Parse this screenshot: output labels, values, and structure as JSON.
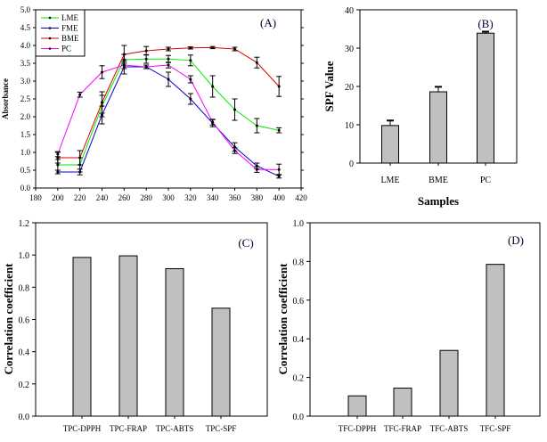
{
  "chart_data": [
    {
      "id": "A",
      "type": "line",
      "panel_label": "(A)",
      "title": "",
      "xlabel": "",
      "ylabel": "Absorbance",
      "xlim": [
        180,
        420
      ],
      "ylim": [
        0,
        5.0
      ],
      "xticks": [
        "180",
        "200",
        "220",
        "240",
        "260",
        "280",
        "300",
        "320",
        "340",
        "360",
        "380",
        "400",
        "420"
      ],
      "yticks": [
        "0.0",
        "0.5",
        "1.0",
        "1.5",
        "2.0",
        "2.5",
        "3.0",
        "3.5",
        "4.0",
        "4.5",
        "5.0"
      ],
      "legend_position": "top-left",
      "x": [
        200,
        220,
        240,
        260,
        280,
        300,
        320,
        340,
        360,
        380,
        400
      ],
      "series": [
        {
          "name": "LME",
          "color": "#00ee00",
          "values": [
            0.65,
            0.65,
            2.3,
            3.6,
            3.62,
            3.62,
            3.58,
            2.85,
            2.2,
            1.75,
            1.62
          ],
          "errors": [
            0.15,
            0.2,
            0.3,
            0.15,
            0.12,
            0.1,
            0.15,
            0.3,
            0.3,
            0.2,
            0.07
          ]
        },
        {
          "name": "FME",
          "color": "#0000cc",
          "values": [
            0.45,
            0.45,
            2.05,
            3.4,
            3.4,
            3.05,
            2.5,
            1.82,
            1.15,
            0.62,
            0.33
          ],
          "errors": [
            0.05,
            0.08,
            0.25,
            0.2,
            0.05,
            0.2,
            0.15,
            0.1,
            0.12,
            0.08,
            0.05
          ]
        },
        {
          "name": "BME",
          "color": "#dd0000",
          "values": [
            0.85,
            0.85,
            2.4,
            3.75,
            3.85,
            3.9,
            3.93,
            3.94,
            3.9,
            3.52,
            2.85
          ],
          "errors": [
            0.15,
            0.2,
            0.3,
            0.25,
            0.12,
            0.05,
            0.03,
            0.03,
            0.05,
            0.15,
            0.28
          ]
        },
        {
          "name": "PC",
          "color": "#ff00ff",
          "values": [
            0.95,
            2.62,
            3.25,
            3.45,
            3.4,
            3.45,
            3.05,
            1.85,
            1.05,
            0.52,
            0.52
          ],
          "errors": [
            0.07,
            0.07,
            0.18,
            0.1,
            0.05,
            0.08,
            0.1,
            0.08,
            0.08,
            0.08,
            0.15
          ]
        }
      ]
    },
    {
      "id": "B",
      "type": "bar",
      "panel_label": "(B)",
      "title": "",
      "xlabel": "Samples",
      "ylabel": "SPF Value",
      "ylim": [
        0,
        40
      ],
      "yticks": [
        "0",
        "10",
        "20",
        "30",
        "40"
      ],
      "categories": [
        "LME",
        "BME",
        "PC"
      ],
      "values": [
        9.8,
        18.6,
        33.9
      ],
      "errors": [
        1.3,
        1.3,
        0.4
      ]
    },
    {
      "id": "C",
      "type": "bar",
      "panel_label": "(C)",
      "title": "",
      "xlabel": "",
      "ylabel": "Correlation coefficient",
      "ylim": [
        0,
        1.2
      ],
      "yticks": [
        "0.0",
        "0.2",
        "0.4",
        "0.6",
        "0.8",
        "1.0",
        "1.2"
      ],
      "categories": [
        "TPC-DPPH",
        "TPC-FRAP",
        "TPC-ABTS",
        "TPC-SPF"
      ],
      "values": [
        0.985,
        0.995,
        0.915,
        0.67
      ]
    },
    {
      "id": "D",
      "type": "bar",
      "panel_label": "(D)",
      "title": "",
      "xlabel": "",
      "ylabel": "Correlation coefficient",
      "ylim": [
        0,
        1.0
      ],
      "yticks": [
        "0.0",
        "0.2",
        "0.4",
        "0.6",
        "0.8",
        "1.0"
      ],
      "categories": [
        "TFC-DPPH",
        "TFC-FRAP",
        "TFC-ABTS",
        "TFC-SPF"
      ],
      "values": [
        0.105,
        0.145,
        0.34,
        0.785
      ]
    }
  ],
  "style": {
    "bar_fill": "#c0c0c0",
    "axis_color": "#000000"
  }
}
